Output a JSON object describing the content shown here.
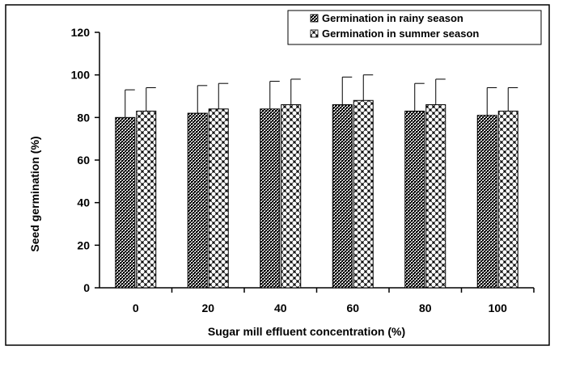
{
  "chart_data": {
    "type": "bar",
    "xlabel": "Sugar mill effluent concentration (%)",
    "ylabel": "Seed germination (%)",
    "ylim": [
      0,
      120
    ],
    "yticks": [
      "0",
      "20",
      "40",
      "60",
      "80",
      "100",
      "120"
    ],
    "categories": [
      "0",
      "20",
      "40",
      "60",
      "80",
      "100"
    ],
    "legend_position": "top-right",
    "series": [
      {
        "name": "Germination in rainy season",
        "values": [
          80,
          82,
          84,
          86,
          83,
          81
        ],
        "error": [
          13,
          13,
          13,
          13,
          13,
          13
        ],
        "pattern": "dense-dark-dots"
      },
      {
        "name": "Germination in summer season",
        "values": [
          83,
          84,
          86,
          88,
          86,
          83
        ],
        "error": [
          11,
          12,
          12,
          12,
          12,
          11
        ],
        "pattern": "light-circles"
      }
    ],
    "colors": {
      "frame": "#000000",
      "bar_fill": "#000000",
      "bar_light": "#ffffff"
    }
  }
}
